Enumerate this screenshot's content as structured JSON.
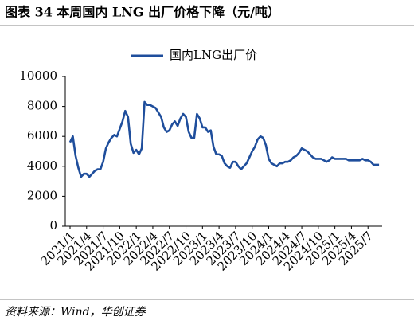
{
  "header": {
    "title": "图表 34   本周国内 LNG 出厂价格下降（元/吨）"
  },
  "chart_data": {
    "type": "line",
    "categories": [
      "2021/1",
      null,
      null,
      null,
      null,
      null,
      "2021/4",
      null,
      null,
      null,
      null,
      null,
      "2021/7",
      null,
      null,
      null,
      null,
      null,
      "2021/10",
      null,
      null,
      null,
      null,
      null,
      "2022/1",
      null,
      null,
      null,
      null,
      null,
      "2022/4",
      null,
      null,
      null,
      null,
      null,
      "2022/7",
      null,
      null,
      null,
      null,
      null,
      "2022/10",
      null,
      null,
      null,
      null,
      null,
      "2023/1",
      null,
      null,
      null,
      null,
      null,
      "2023/4",
      null,
      null,
      null,
      null,
      null,
      "2023/7",
      null,
      null,
      null,
      null,
      null,
      "2023/10",
      null,
      null,
      null,
      null,
      null,
      "2024/1",
      null,
      null,
      null,
      null,
      null,
      "2024/4",
      null,
      null,
      null,
      null,
      null,
      "2024/7",
      null,
      null,
      null,
      null,
      null,
      "2024/10",
      null,
      null,
      null,
      null,
      null,
      "2025/1",
      null,
      null,
      null,
      null,
      null,
      "2025/4",
      null,
      null,
      null,
      null,
      null,
      "2025/7",
      null,
      null,
      null,
      null
    ],
    "series": [
      {
        "name": "国内LNG出厂价",
        "color": "#1f4e9c",
        "values": [
          5600,
          6000,
          4700,
          3900,
          3300,
          3500,
          3500,
          3300,
          3500,
          3700,
          3800,
          3800,
          4300,
          5200,
          5600,
          5900,
          6100,
          6000,
          6500,
          7000,
          7700,
          7300,
          5500,
          4900,
          5100,
          4800,
          5200,
          8300,
          8100,
          8100,
          8000,
          7900,
          7600,
          7300,
          6600,
          6300,
          6400,
          6800,
          7000,
          6700,
          7200,
          7500,
          7300,
          6300,
          5900,
          5900,
          7500,
          7200,
          6600,
          6600,
          6300,
          6400,
          5300,
          4800,
          4800,
          4700,
          4200,
          4000,
          3900,
          4300,
          4300,
          4000,
          3800,
          4000,
          4200,
          4600,
          5000,
          5300,
          5800,
          6000,
          5900,
          5400,
          4500,
          4200,
          4100,
          4000,
          4200,
          4200,
          4300,
          4300,
          4400,
          4600,
          4700,
          4900,
          5200,
          5100,
          5000,
          4800,
          4600,
          4500,
          4500,
          4500,
          4400,
          4300,
          4400,
          4600,
          4500,
          4500,
          4500,
          4500,
          4500,
          4400,
          4400,
          4400,
          4400,
          4400,
          4500,
          4400,
          4400,
          4300,
          4100,
          4100,
          4100
        ]
      }
    ],
    "ylim": [
      0,
      10000
    ],
    "yticks": [
      0,
      2000,
      4000,
      6000,
      8000,
      10000
    ],
    "grid": false,
    "source": "资料来源：Wind，华创证券"
  }
}
